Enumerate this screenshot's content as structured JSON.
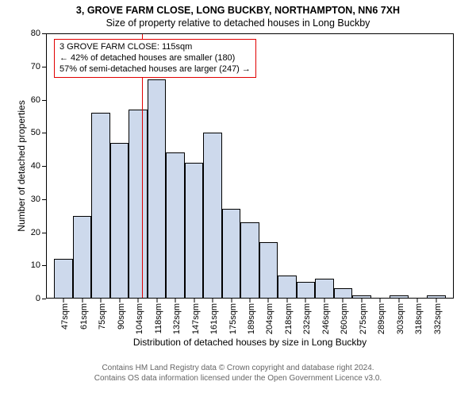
{
  "chart": {
    "type": "histogram",
    "title_line1": "3, GROVE FARM CLOSE, LONG BUCKBY, NORTHAMPTON, NN6 7XH",
    "title_line2": "Size of property relative to detached houses in Long Buckby",
    "x_axis_label": "Distribution of detached houses by size in Long Buckby",
    "y_axis_label": "Number of detached properties",
    "ylim": [
      0,
      80
    ],
    "ytick_step": 10,
    "x_categories": [
      "47sqm",
      "61sqm",
      "75sqm",
      "90sqm",
      "104sqm",
      "118sqm",
      "132sqm",
      "147sqm",
      "161sqm",
      "175sqm",
      "189sqm",
      "204sqm",
      "218sqm",
      "232sqm",
      "246sqm",
      "260sqm",
      "275sqm",
      "289sqm",
      "303sqm",
      "318sqm",
      "332sqm"
    ],
    "values": [
      12,
      25,
      56,
      47,
      57,
      66,
      44,
      41,
      50,
      27,
      23,
      17,
      7,
      5,
      6,
      3,
      1,
      0,
      1,
      0,
      1
    ],
    "bar_fill_color": "#cdd9ec",
    "bar_border_color": "#000000",
    "axes_border_color": "#000000",
    "background_color": "#ffffff",
    "title_fontsize": 12.5,
    "tick_fontsize": 11,
    "label_fontsize": 12,
    "marker": {
      "x_value": "115sqm",
      "fractional_x": 0.235,
      "color": "#e10000",
      "line_width": 1.6
    },
    "annotation": {
      "line1": "3 GROVE FARM CLOSE: 115sqm",
      "line2": "← 42% of detached houses are smaller (180)",
      "line3": "57% of semi-detached houses are larger (247) →",
      "border_color": "#e10000",
      "background_color": "#ffffff"
    },
    "attribution": {
      "line1": "Contains HM Land Registry data © Crown copyright and database right 2024.",
      "line2": "Contains OS data information licensed under the Open Government Licence v3.0.",
      "color": "#666666"
    }
  }
}
